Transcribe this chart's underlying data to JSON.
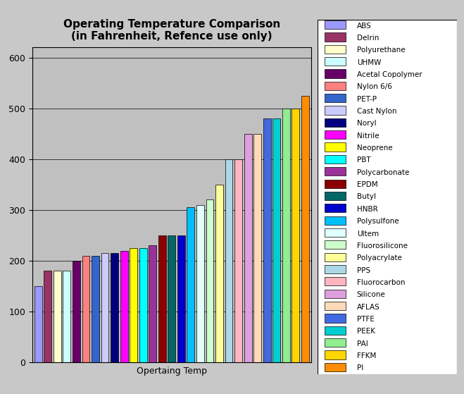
{
  "title": "Operating Temperature Comparison\n(in Fahrenheit, Refence use only)",
  "xlabel": "Opertaing Temp",
  "ylabel": "",
  "ylim": [
    0,
    620
  ],
  "yticks": [
    0,
    100,
    200,
    300,
    400,
    500,
    600
  ],
  "categories": [
    "ABS",
    "Delrin",
    "Polyurethane",
    "UHMW",
    "Acetal Copolymer",
    "Nylon 6/6",
    "PET-P",
    "Cast Nylon",
    "Noryl",
    "Nitrile",
    "Neoprene",
    "PBT",
    "Polycarbonate",
    "EPDM",
    "Butyl",
    "HNBR",
    "Polysulfone",
    "Ultem",
    "Fluorosilicone",
    "Polyacrylate",
    "PPS",
    "Fluorocarbon",
    "Silicone",
    "AFLAS",
    "PTFE",
    "PEEK",
    "PAI",
    "FFKM",
    "PI"
  ],
  "values": [
    150,
    180,
    180,
    180,
    200,
    210,
    210,
    215,
    215,
    220,
    225,
    225,
    230,
    250,
    250,
    250,
    305,
    310,
    320,
    350,
    400,
    400,
    450,
    450,
    480,
    480,
    500,
    500,
    525
  ],
  "colors": [
    "#9999FF",
    "#993366",
    "#FFFFCC",
    "#CCFFFF",
    "#660066",
    "#FF8080",
    "#3366CC",
    "#CCCCFF",
    "#000080",
    "#FF00FF",
    "#FFFF00",
    "#00FFFF",
    "#993399",
    "#8B0000",
    "#006666",
    "#0000CD",
    "#00BFFF",
    "#E0FFFF",
    "#CCFFCC",
    "#FFFF99",
    "#ADD8E6",
    "#FFB6C1",
    "#DDA0DD",
    "#FFDAB9",
    "#4169E1",
    "#00CED1",
    "#90EE90",
    "#FFD700",
    "#FF8C00"
  ],
  "legend_colors": [
    "#9999FF",
    "#993366",
    "#FFFFCC",
    "#CCFFFF",
    "#660066",
    "#FF8080",
    "#3366CC",
    "#CCCCFF",
    "#000080",
    "#FF00FF",
    "#FFFF00",
    "#00FFFF",
    "#993399",
    "#8B0000",
    "#006666",
    "#0000CD",
    "#00BFFF",
    "#E0FFFF",
    "#CCFFCC",
    "#FFFF99",
    "#ADD8E6",
    "#FFB6C1",
    "#DDA0DD",
    "#FFDAB9",
    "#4169E1",
    "#00CED1",
    "#90EE90",
    "#FFD700",
    "#FF8C00"
  ],
  "fig_bg_color": "#C8C8C8",
  "plot_bg_color": "#C0C0C0",
  "grid_color": "#000000",
  "title_fontsize": 11,
  "axis_fontsize": 9,
  "legend_fontsize": 7.5
}
